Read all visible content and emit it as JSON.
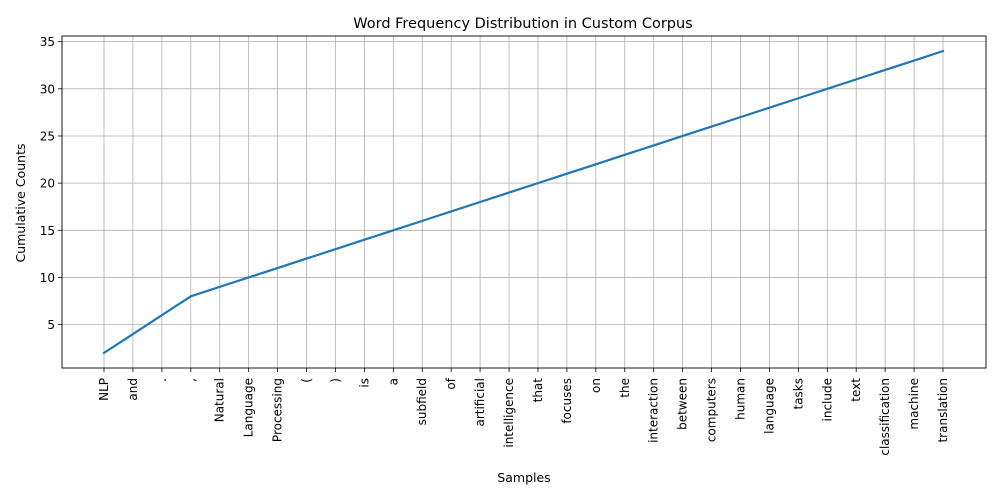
{
  "chart_data": {
    "type": "line",
    "title": "Word Frequency Distribution in Custom Corpus",
    "xlabel": "Samples",
    "ylabel": "Cumulative Counts",
    "categories": [
      "NLP",
      "and",
      ".",
      ",",
      "Natural",
      "Language",
      "Processing",
      "(",
      ")",
      "is",
      "a",
      "subfield",
      "of",
      "artificial",
      "intelligence",
      "that",
      "focuses",
      "on",
      "the",
      "interaction",
      "between",
      "computers",
      "human",
      "language",
      "tasks",
      "include",
      "text",
      "classification",
      "machine",
      "translation"
    ],
    "series": [
      {
        "values": [
          2,
          4,
          6,
          8,
          9,
          10,
          11,
          12,
          13,
          14,
          15,
          16,
          17,
          18,
          19,
          20,
          21,
          22,
          23,
          24,
          25,
          26,
          27,
          28,
          29,
          30,
          31,
          32,
          33,
          34
        ],
        "color": "#1f77b4"
      }
    ],
    "ylim": [
      0.4,
      35.6
    ],
    "yticks": [
      5,
      10,
      15,
      20,
      25,
      30,
      35
    ],
    "grid": true,
    "grid_color": "#b0b0b0",
    "legend": "none"
  }
}
